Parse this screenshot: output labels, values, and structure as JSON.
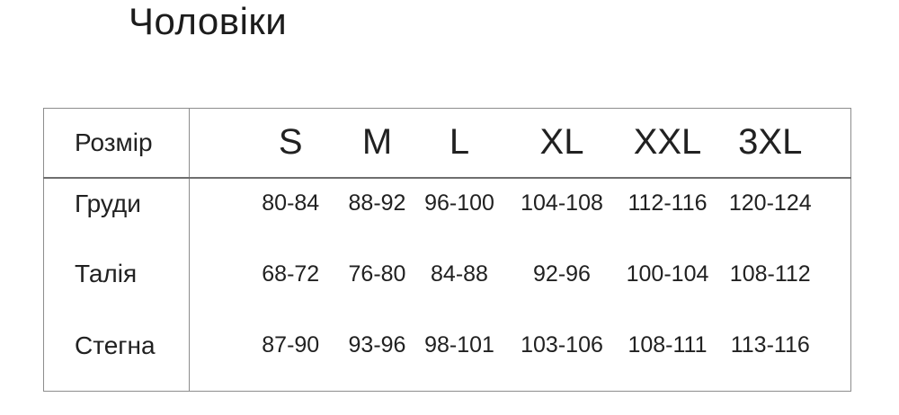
{
  "chart_data": {
    "type": "table",
    "title": "Чоловіки",
    "columns": [
      "Розмір",
      "S",
      "M",
      "L",
      "XL",
      "XXL",
      "3XL"
    ],
    "rows": [
      [
        "Груди",
        "80-84",
        "88-92",
        "96-100",
        "104-108",
        "112-116",
        "120-124"
      ],
      [
        "Талія",
        "68-72",
        "76-80",
        "84-88",
        "92-96",
        "100-104",
        "108-112"
      ],
      [
        "Стегна",
        "87-90",
        "93-96",
        "98-101",
        "103-106",
        "108-111",
        "113-116"
      ]
    ]
  },
  "colors": {
    "background": "#ffffff",
    "text": "#212121",
    "border": "#8d8d8d",
    "header_rule": "#6f6f6f"
  }
}
